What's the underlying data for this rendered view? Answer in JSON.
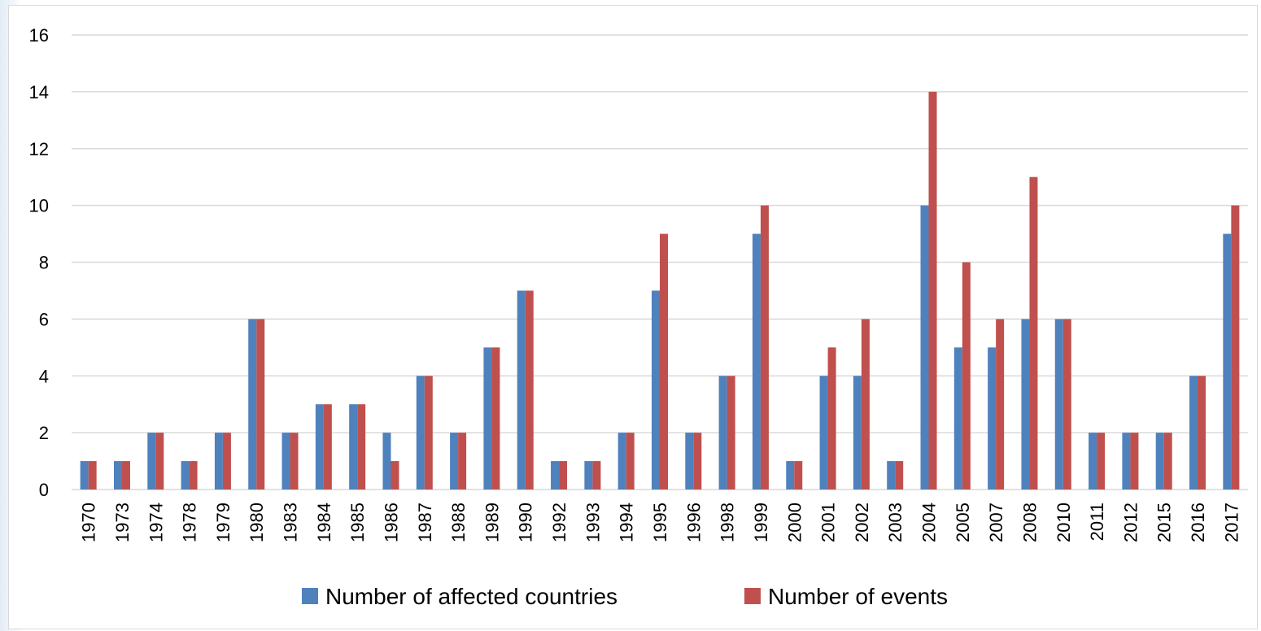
{
  "chart_data": {
    "type": "bar",
    "categories": [
      "1970",
      "1973",
      "1974",
      "1978",
      "1979",
      "1980",
      "1983",
      "1984",
      "1985",
      "1986",
      "1987",
      "1988",
      "1989",
      "1990",
      "1992",
      "1993",
      "1994",
      "1995",
      "1996",
      "1998",
      "1999",
      "2000",
      "2001",
      "2002",
      "2003",
      "2004",
      "2005",
      "2007",
      "2008",
      "2010",
      "2011",
      "2012",
      "2015",
      "2016",
      "2017"
    ],
    "series": [
      {
        "name": "Number of affected countries",
        "color": "#4f81bd",
        "values": [
          1,
          1,
          2,
          1,
          2,
          6,
          2,
          3,
          3,
          2,
          4,
          2,
          5,
          7,
          1,
          1,
          2,
          7,
          2,
          4,
          9,
          1,
          4,
          4,
          1,
          10,
          5,
          5,
          6,
          6,
          2,
          2,
          2,
          4,
          9
        ]
      },
      {
        "name": "Number of events",
        "color": "#c0504d",
        "values": [
          1,
          1,
          2,
          1,
          2,
          6,
          2,
          3,
          3,
          1,
          4,
          2,
          5,
          7,
          1,
          1,
          2,
          9,
          2,
          4,
          10,
          1,
          5,
          6,
          1,
          14,
          8,
          6,
          11,
          6,
          2,
          2,
          2,
          4,
          10
        ]
      }
    ],
    "yticks": [
      "0",
      "2",
      "4",
      "6",
      "8",
      "10",
      "12",
      "14",
      "16"
    ],
    "ylim": [
      0,
      16
    ],
    "grid": true,
    "legend_position": "bottom"
  }
}
